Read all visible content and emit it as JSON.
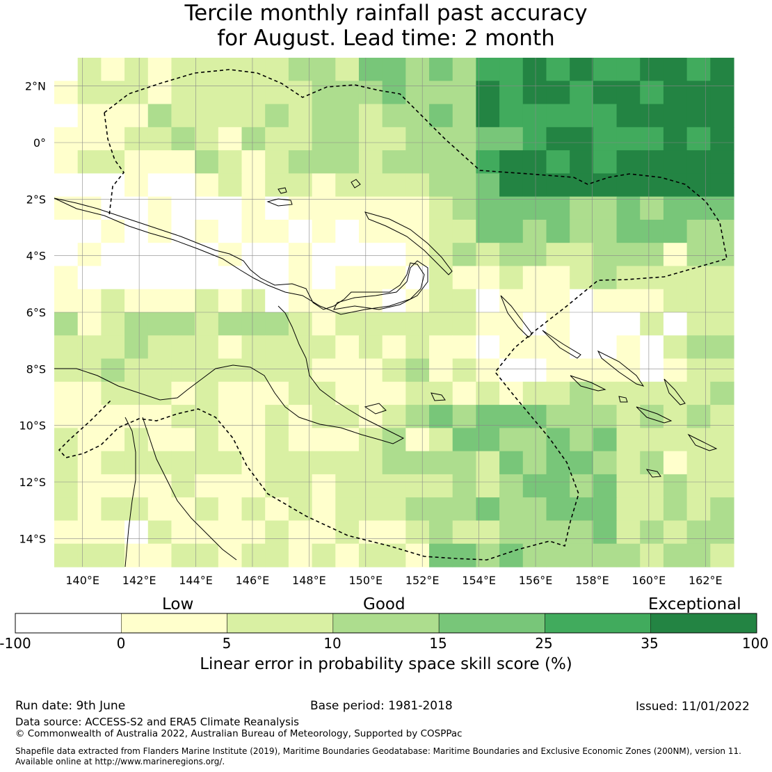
{
  "title_line1": "Tercile monthly rainfall past accuracy",
  "title_line2": "for August. Lead time: 2 month",
  "map": {
    "lon_ticks": [
      "140°E",
      "142°E",
      "144°E",
      "146°E",
      "148°E",
      "150°E",
      "152°E",
      "154°E",
      "156°E",
      "158°E",
      "160°E",
      "162°E"
    ],
    "lat_ticks": [
      "2°N",
      "0°",
      "2°S",
      "4°S",
      "6°S",
      "8°S",
      "10°S",
      "12°S",
      "14°S"
    ],
    "extent": {
      "lon_min": 139.0,
      "lon_max": 163.0,
      "lat_min": -15.0,
      "lat_max": 3.0
    },
    "pattern_note": ""
  },
  "colorbar": {
    "category_labels": [
      "Low",
      "Good",
      "Exceptional"
    ],
    "ticks": [
      "-100",
      "0",
      "5",
      "10",
      "15",
      "25",
      "35",
      "100"
    ],
    "colors": [
      "#ffffff",
      "#ffffcc",
      "#d9f0a3",
      "#addd8e",
      "#78c679",
      "#41ab5d",
      "#238443"
    ],
    "axis_label": "Linear error in probability space skill score (%)"
  },
  "footer": {
    "run_date": "Run date: 9th June",
    "base_period": "Base period: 1981-2018",
    "issued": "Issued: 11/01/2022",
    "data_source": "Data source: ACCESS-S2 and ERA5 Climate Reanalysis",
    "copyright": "© Commonwealth of Australia 2022, Australian Bureau of Meteorology, Supported by COSPPac",
    "shapefile_1": "Shapefile data extracted from Flanders Marine Institute (2019), Maritime Boundaries Geodatabase: Maritime Boundaries and Exclusive Economic Zones (200NM), version 11.",
    "shapefile_2": "Available online at http://www.marineregions.org/."
  }
}
